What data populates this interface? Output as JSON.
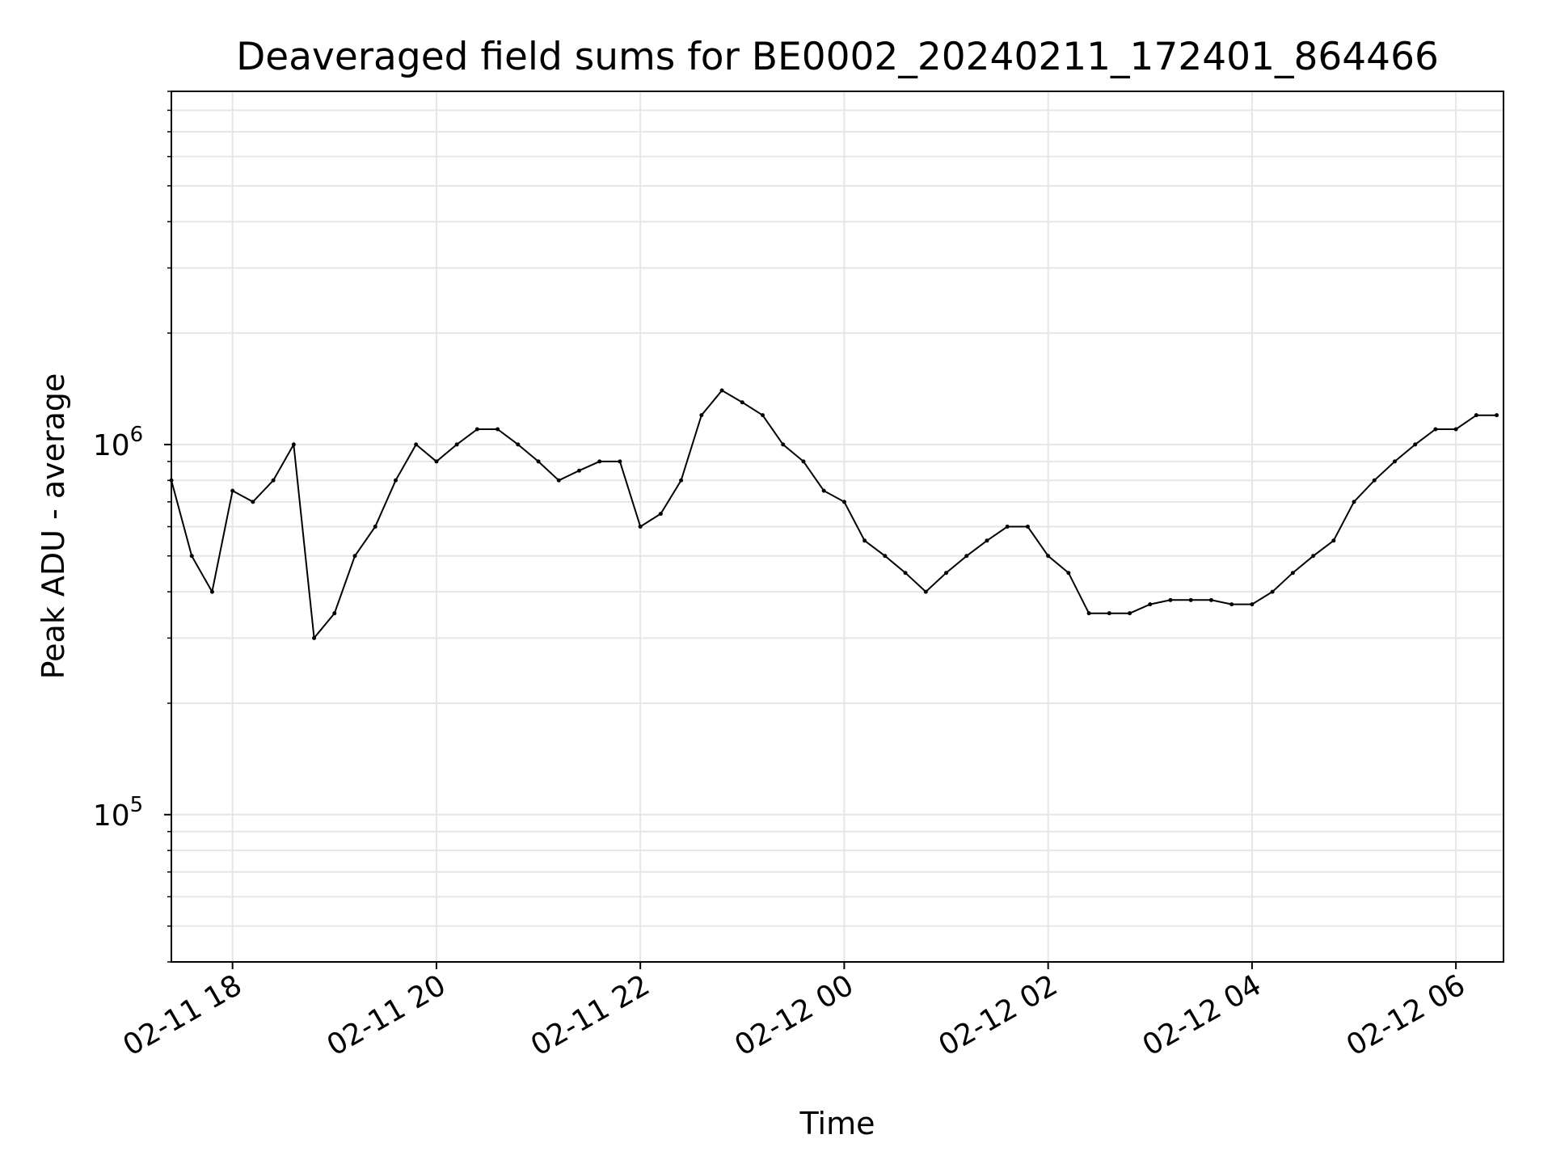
{
  "chart_data": {
    "type": "line",
    "title": "Deaveraged field sums for BE0002_20240211_172401_864466",
    "xlabel": "Time",
    "ylabel": "Peak ADU - average",
    "x_ticks": [
      "02-11 18",
      "02-11 20",
      "02-11 22",
      "02-12 00",
      "02-12 02",
      "02-12 04",
      "02-12 06"
    ],
    "y_ticks": [
      {
        "base": "10",
        "exp": "5",
        "value": 100000
      },
      {
        "base": "10",
        "exp": "6",
        "value": 1000000
      }
    ],
    "x_range": [
      "2024-02-11 17:24",
      "2024-02-12 06:28"
    ],
    "ylim": [
      40000,
      9000000
    ],
    "y_scale": "log",
    "grid": true,
    "line_color": "#000000",
    "grid_color": "#e6e6e6",
    "series": [
      {
        "points": [
          [
            "2024-02-11 17:24",
            800000
          ],
          [
            "2024-02-11 17:36",
            500000
          ],
          [
            "2024-02-11 17:48",
            400000
          ],
          [
            "2024-02-11 18:00",
            750000
          ],
          [
            "2024-02-11 18:12",
            700000
          ],
          [
            "2024-02-11 18:24",
            800000
          ],
          [
            "2024-02-11 18:36",
            1000000
          ],
          [
            "2024-02-11 18:48",
            300000
          ],
          [
            "2024-02-11 19:00",
            350000
          ],
          [
            "2024-02-11 19:12",
            500000
          ],
          [
            "2024-02-11 19:24",
            600000
          ],
          [
            "2024-02-11 19:36",
            800000
          ],
          [
            "2024-02-11 19:48",
            1000000
          ],
          [
            "2024-02-11 20:00",
            900000
          ],
          [
            "2024-02-11 20:12",
            1000000
          ],
          [
            "2024-02-11 20:24",
            1100000
          ],
          [
            "2024-02-11 20:36",
            1100000
          ],
          [
            "2024-02-11 20:48",
            1000000
          ],
          [
            "2024-02-11 21:00",
            900000
          ],
          [
            "2024-02-11 21:12",
            800000
          ],
          [
            "2024-02-11 21:24",
            850000
          ],
          [
            "2024-02-11 21:36",
            900000
          ],
          [
            "2024-02-11 21:48",
            900000
          ],
          [
            "2024-02-11 22:00",
            600000
          ],
          [
            "2024-02-11 22:12",
            650000
          ],
          [
            "2024-02-11 22:24",
            800000
          ],
          [
            "2024-02-11 22:36",
            1200000
          ],
          [
            "2024-02-11 22:48",
            1400000
          ],
          [
            "2024-02-11 23:00",
            1300000
          ],
          [
            "2024-02-11 23:12",
            1200000
          ],
          [
            "2024-02-11 23:24",
            1000000
          ],
          [
            "2024-02-11 23:36",
            900000
          ],
          [
            "2024-02-11 23:48",
            750000
          ],
          [
            "2024-02-12 00:00",
            700000
          ],
          [
            "2024-02-12 00:12",
            550000
          ],
          [
            "2024-02-12 00:24",
            500000
          ],
          [
            "2024-02-12 00:36",
            450000
          ],
          [
            "2024-02-12 00:48",
            400000
          ],
          [
            "2024-02-12 01:00",
            450000
          ],
          [
            "2024-02-12 01:12",
            500000
          ],
          [
            "2024-02-12 01:24",
            550000
          ],
          [
            "2024-02-12 01:36",
            600000
          ],
          [
            "2024-02-12 01:48",
            600000
          ],
          [
            "2024-02-12 02:00",
            500000
          ],
          [
            "2024-02-12 02:12",
            450000
          ],
          [
            "2024-02-12 02:24",
            350000
          ],
          [
            "2024-02-12 02:36",
            350000
          ],
          [
            "2024-02-12 02:48",
            350000
          ],
          [
            "2024-02-12 03:00",
            370000
          ],
          [
            "2024-02-12 03:12",
            380000
          ],
          [
            "2024-02-12 03:24",
            380000
          ],
          [
            "2024-02-12 03:36",
            380000
          ],
          [
            "2024-02-12 03:48",
            370000
          ],
          [
            "2024-02-12 04:00",
            370000
          ],
          [
            "2024-02-12 04:12",
            400000
          ],
          [
            "2024-02-12 04:24",
            450000
          ],
          [
            "2024-02-12 04:36",
            500000
          ],
          [
            "2024-02-12 04:48",
            550000
          ],
          [
            "2024-02-12 05:00",
            700000
          ],
          [
            "2024-02-12 05:12",
            800000
          ],
          [
            "2024-02-12 05:24",
            900000
          ],
          [
            "2024-02-12 05:36",
            1000000
          ],
          [
            "2024-02-12 05:48",
            1100000
          ],
          [
            "2024-02-12 06:00",
            1100000
          ],
          [
            "2024-02-12 06:12",
            1200000
          ],
          [
            "2024-02-12 06:24",
            1200000
          ]
        ]
      }
    ]
  }
}
